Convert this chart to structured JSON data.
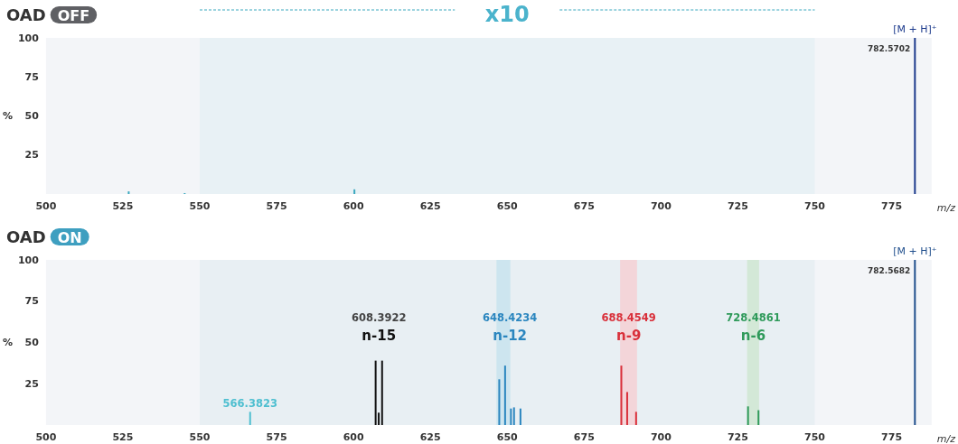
{
  "chart_data": [
    {
      "type": "bar",
      "title": "OAD",
      "subtitle": "OFF",
      "xlabel": "m/z",
      "ylabel": "%",
      "xlim": [
        500,
        788
      ],
      "xticks": [
        500,
        525,
        550,
        575,
        600,
        625,
        650,
        675,
        700,
        725,
        750,
        775
      ],
      "ylim": [
        0,
        100
      ],
      "yticks": [
        25,
        50,
        75,
        100
      ],
      "grid": false,
      "legend": false,
      "bands": [
        {
          "axis": "x",
          "from": 550,
          "to": 750,
          "label": "x10",
          "color": "#e8f1f5"
        }
      ],
      "series": [
        {
          "color": "#3aa8bf",
          "x": [
            526.9,
            545.1,
            600.3
          ],
          "values": [
            1.7,
            0.6,
            3
          ]
        },
        {
          "name": "[M + H]⁺",
          "color": "#1c3a8c",
          "x": [
            782.5702
          ],
          "values": [
            100
          ]
        }
      ],
      "annotations": [
        "782.5702"
      ]
    },
    {
      "type": "bar",
      "title": "OAD",
      "subtitle": "ON",
      "xlabel": "m/z",
      "ylabel": "%",
      "xlim": [
        500,
        788
      ],
      "xticks": [
        500,
        525,
        550,
        575,
        600,
        625,
        650,
        675,
        700,
        725,
        750,
        775
      ],
      "ylim": [
        0,
        100
      ],
      "yticks": [
        25,
        50,
        75,
        100
      ],
      "grid": false,
      "legend": false,
      "bands": [
        {
          "axis": "x",
          "from": 550,
          "to": 750,
          "color": "#e8eff3"
        },
        {
          "axis": "x",
          "from": 646.5,
          "to": 651,
          "color": "#cde5ef"
        },
        {
          "axis": "x",
          "from": 686.7,
          "to": 692.2,
          "color": "#f3d5d9"
        },
        {
          "axis": "x",
          "from": 728,
          "to": 731.9,
          "color": "#d3e8d7"
        }
      ],
      "series": [
        {
          "color": "#4fbfd0",
          "x": [
            566.3823
          ],
          "values": [
            8
          ]
        },
        {
          "name": "n-15",
          "color": "#111111",
          "x": [
            607.2,
            608.2,
            609.3
          ],
          "values": [
            39,
            7.5,
            39
          ]
        },
        {
          "name": "n-12",
          "color": "#2b86bf",
          "x": [
            647.4,
            649.3,
            651.2,
            652.2,
            654.3
          ],
          "values": [
            27.7,
            36,
            10,
            10.7,
            10
          ]
        },
        {
          "name": "n-9",
          "color": "#d9303a",
          "x": [
            687.1,
            689.0,
            691.9
          ],
          "values": [
            36,
            20,
            8
          ]
        },
        {
          "name": "n-6",
          "color": "#2f9a5a",
          "x": [
            728.3,
            731.7
          ],
          "values": [
            11.3,
            9
          ]
        },
        {
          "name": "[M + H]⁺",
          "color": "#1f4e8c",
          "x": [
            782.5682
          ],
          "values": [
            100
          ]
        }
      ],
      "annotations": [
        {
          "text": "566.3823",
          "x": 566.3823,
          "y": 8
        },
        "608.3922",
        "648.4234",
        "688.4549",
        "728.4861",
        "782.5682"
      ]
    }
  ]
}
